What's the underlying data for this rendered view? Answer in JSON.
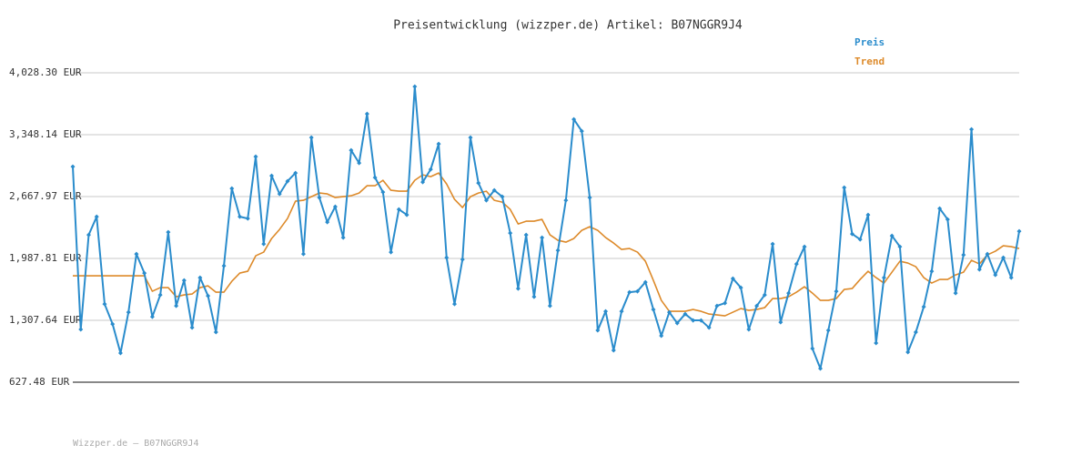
{
  "chart_data": {
    "type": "line",
    "title": "Preisentwicklung (wizzper.de) Artikel: B07NGGR9J4",
    "footer": "Wizzper.de – B07NGGR9J4",
    "ylim": [
      627.48,
      4028.3
    ],
    "yticks": [
      {
        "value": 627.48,
        "label": "627.48 EUR"
      },
      {
        "value": 1307.64,
        "label": "1,307.64 EUR"
      },
      {
        "value": 1987.81,
        "label": "1,987.81 EUR"
      },
      {
        "value": 2667.97,
        "label": "2,667.97 EUR"
      },
      {
        "value": 3348.14,
        "label": "3,348.14 EUR"
      },
      {
        "value": 4028.3,
        "label": "4,028.30 EUR"
      }
    ],
    "grid": true,
    "legend": "top-right",
    "series": [
      {
        "name": "Preis",
        "color": "#2a8ccc",
        "markers": true,
        "values": [
          2997,
          1207,
          2247,
          2447,
          1487,
          1267,
          947,
          1397,
          2037,
          1827,
          1347,
          1587,
          2277,
          1467,
          1747,
          1227,
          1777,
          1577,
          1177,
          1907,
          2757,
          2447,
          2427,
          3107,
          2147,
          2897,
          2697,
          2837,
          2927,
          2037,
          3317,
          2657,
          2387,
          2557,
          2217,
          3177,
          3037,
          3577,
          2877,
          2717,
          2057,
          2527,
          2467,
          3877,
          2827,
          2967,
          3247,
          1997,
          1487,
          1977,
          3317,
          2817,
          2627,
          2737,
          2667,
          2267,
          1657,
          2247,
          1567,
          2217,
          1467,
          2077,
          2627,
          3517,
          3387,
          2657,
          1197,
          1407,
          977,
          1407,
          1617,
          1627,
          1727,
          1427,
          1137,
          1397,
          1277,
          1377,
          1307,
          1307,
          1227,
          1467,
          1497,
          1767,
          1667,
          1207,
          1467,
          1587,
          2147,
          1287,
          1607,
          1927,
          2117,
          997,
          777,
          1197,
          1627,
          2767,
          2257,
          2197,
          2467,
          1057,
          1777,
          2237,
          2117,
          957,
          1177,
          1457,
          1847,
          2537,
          2417,
          1607,
          2027,
          3407,
          1867,
          2037,
          1807,
          1997,
          1777,
          2287
        ]
      },
      {
        "name": "Trend",
        "color": "#dd8a2a",
        "markers": false,
        "values": [
          1797,
          1797,
          1797,
          1797,
          1797,
          1797,
          1797,
          1797,
          1797,
          1797,
          1627,
          1667,
          1667,
          1567,
          1587,
          1597,
          1667,
          1687,
          1617,
          1617,
          1737,
          1827,
          1847,
          2017,
          2057,
          2207,
          2307,
          2427,
          2617,
          2627,
          2667,
          2707,
          2697,
          2657,
          2667,
          2677,
          2707,
          2787,
          2787,
          2847,
          2737,
          2727,
          2727,
          2847,
          2907,
          2887,
          2927,
          2807,
          2637,
          2547,
          2667,
          2707,
          2727,
          2627,
          2607,
          2527,
          2367,
          2397,
          2397,
          2417,
          2247,
          2187,
          2167,
          2207,
          2297,
          2337,
          2297,
          2217,
          2157,
          2087,
          2097,
          2057,
          1957,
          1747,
          1527,
          1407,
          1407,
          1407,
          1427,
          1407,
          1377,
          1367,
          1357,
          1397,
          1437,
          1417,
          1427,
          1447,
          1547,
          1547,
          1567,
          1617,
          1677,
          1607,
          1527,
          1527,
          1547,
          1647,
          1657,
          1757,
          1847,
          1777,
          1717,
          1837,
          1957,
          1937,
          1897,
          1777,
          1717,
          1757,
          1757,
          1807,
          1837,
          1967,
          1927,
          2027,
          2067,
          2127,
          2117,
          2097
        ]
      }
    ]
  }
}
